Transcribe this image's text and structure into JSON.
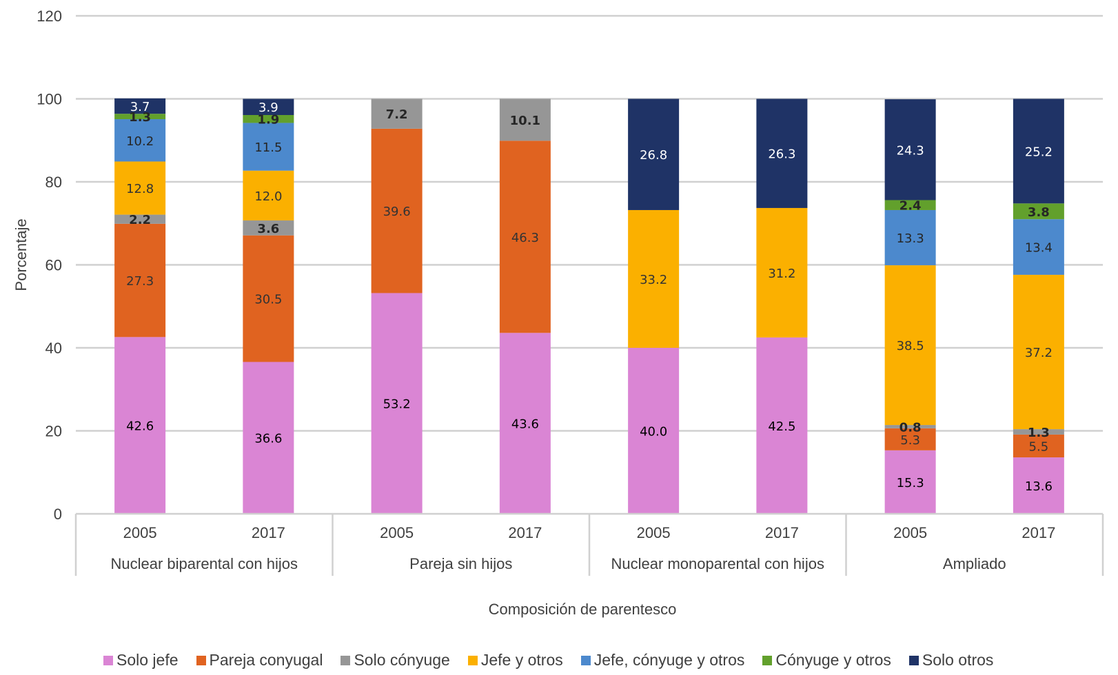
{
  "chart_data": {
    "type": "bar",
    "stacked": true,
    "title": "",
    "ylabel": "Porcentaje",
    "xlabel": "Composición de parentesco",
    "ylim": [
      0,
      120
    ],
    "yticks": [
      0,
      20,
      40,
      60,
      80,
      100,
      120
    ],
    "grid": true,
    "legend_position": "bottom",
    "groups": [
      {
        "label": "Nuclear biparental con hijos",
        "categories": [
          "2005",
          "2017"
        ]
      },
      {
        "label": "Pareja sin hijos",
        "categories": [
          "2005",
          "2017"
        ]
      },
      {
        "label": "Nuclear monoparental con hijos",
        "categories": [
          "2005",
          "2017"
        ]
      },
      {
        "label": "Ampliado",
        "categories": [
          "2005",
          "2017"
        ]
      }
    ],
    "series": [
      {
        "name": "Solo jefe",
        "color": "#DA85D4",
        "label_color": "#000000",
        "label_bold": false,
        "values": [
          42.6,
          36.6,
          53.2,
          43.6,
          40.0,
          42.5,
          15.3,
          13.6
        ]
      },
      {
        "name": "Pareja conyugal",
        "color": "#E06320",
        "label_color": "#333333",
        "label_bold": false,
        "values": [
          27.3,
          30.5,
          39.6,
          46.3,
          null,
          null,
          5.3,
          5.5
        ]
      },
      {
        "name": "Solo cónyuge",
        "color": "#969696",
        "label_color": "#262626",
        "label_bold": true,
        "values": [
          2.2,
          3.6,
          7.2,
          10.1,
          null,
          null,
          0.8,
          1.3
        ]
      },
      {
        "name": "Jefe y otros",
        "color": "#FBB000",
        "label_color": "#333333",
        "label_bold": false,
        "values": [
          12.8,
          12.0,
          null,
          null,
          33.2,
          31.2,
          38.5,
          37.2
        ]
      },
      {
        "name": "Jefe, cónyuge y otros",
        "color": "#4C89CD",
        "label_color": "#262626",
        "label_bold": false,
        "values": [
          10.2,
          11.5,
          null,
          null,
          null,
          null,
          13.3,
          13.4
        ]
      },
      {
        "name": "Cónyuge y otros",
        "color": "#62A02C",
        "label_color": "#262626",
        "label_bold": true,
        "values": [
          1.3,
          1.9,
          null,
          null,
          null,
          null,
          2.4,
          3.8
        ]
      },
      {
        "name": "Solo otros",
        "color": "#1F3366",
        "label_color": "#FFFFFF",
        "label_bold": false,
        "values": [
          3.7,
          3.9,
          null,
          null,
          26.8,
          26.3,
          24.3,
          25.2
        ]
      }
    ]
  }
}
